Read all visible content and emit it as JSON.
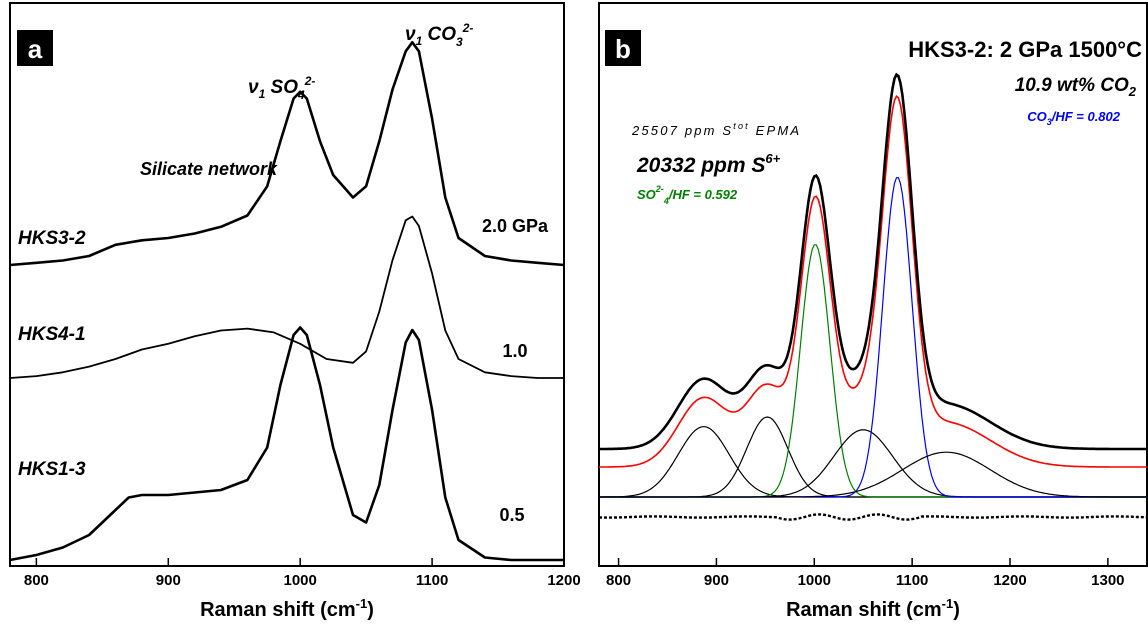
{
  "chart_data": [
    {
      "panel": "a",
      "type": "line",
      "xlabel": "Raman shift (cm",
      "xlabel_sup": "-1",
      "xlabel_close": ")",
      "xlim": [
        780,
        1200
      ],
      "xticks": [
        800,
        900,
        1000,
        1100,
        1200
      ],
      "grid": false,
      "peak_labels": {
        "sulfate": {
          "base": "ν",
          "sub": "1",
          "ion": " SO",
          "ion_sub": "4",
          "ion_sup": "2-"
        },
        "carbonate": {
          "base": "ν",
          "sub": "1",
          "ion": " CO",
          "ion_sub": "3",
          "ion_sup": "2-"
        }
      },
      "annotations": [
        "Silicate network"
      ],
      "series": [
        {
          "name": "HKS3-2",
          "pressure_label": "2.0 GPa",
          "color": "#000000",
          "x": [
            780,
            800,
            820,
            840,
            860,
            880,
            900,
            920,
            940,
            960,
            975,
            985,
            995,
            1000,
            1005,
            1015,
            1025,
            1040,
            1050,
            1060,
            1070,
            1080,
            1085,
            1090,
            1100,
            1110,
            1120,
            1140,
            1160,
            1180,
            1200
          ],
          "y": [
            0.0,
            0.01,
            0.02,
            0.04,
            0.09,
            0.11,
            0.12,
            0.14,
            0.17,
            0.22,
            0.35,
            0.55,
            0.74,
            0.77,
            0.74,
            0.55,
            0.4,
            0.3,
            0.35,
            0.55,
            0.78,
            0.95,
            0.99,
            0.95,
            0.65,
            0.3,
            0.12,
            0.04,
            0.02,
            0.01,
            0.0
          ]
        },
        {
          "name": "HKS4-1",
          "pressure_label": "1.0",
          "color": "#000000",
          "x": [
            780,
            800,
            820,
            840,
            860,
            880,
            900,
            920,
            940,
            960,
            980,
            1000,
            1020,
            1040,
            1050,
            1060,
            1070,
            1080,
            1085,
            1090,
            1100,
            1110,
            1120,
            1140,
            1160,
            1180,
            1200
          ],
          "y": [
            0.0,
            0.01,
            0.03,
            0.06,
            0.1,
            0.15,
            0.18,
            0.22,
            0.25,
            0.26,
            0.24,
            0.18,
            0.1,
            0.08,
            0.14,
            0.35,
            0.62,
            0.83,
            0.85,
            0.8,
            0.55,
            0.25,
            0.1,
            0.03,
            0.01,
            0.0,
            0.0
          ]
        },
        {
          "name": "HKS1-3",
          "pressure_label": "0.5",
          "color": "#000000",
          "x": [
            780,
            800,
            820,
            840,
            860,
            870,
            880,
            900,
            920,
            940,
            960,
            975,
            985,
            995,
            1000,
            1005,
            1015,
            1025,
            1040,
            1050,
            1060,
            1070,
            1080,
            1085,
            1090,
            1100,
            1110,
            1120,
            1140,
            1160,
            1180,
            1200
          ],
          "y": [
            0.0,
            0.02,
            0.05,
            0.1,
            0.2,
            0.25,
            0.26,
            0.26,
            0.27,
            0.28,
            0.32,
            0.45,
            0.7,
            0.9,
            0.93,
            0.9,
            0.7,
            0.45,
            0.18,
            0.15,
            0.3,
            0.6,
            0.87,
            0.92,
            0.88,
            0.6,
            0.25,
            0.08,
            0.01,
            0.0,
            0.0,
            0.0
          ]
        }
      ]
    },
    {
      "panel": "b",
      "type": "line",
      "title": "HKS3-2: 2 GPa 1500°C",
      "xlabel": "Raman shift (cm",
      "xlabel_sup": "-1",
      "xlabel_close": ")",
      "xlim": [
        780,
        1340
      ],
      "xticks": [
        800,
        900,
        1000,
        1100,
        1200,
        1300
      ],
      "grid": false,
      "annotations": {
        "co2": {
          "text": "10.9 wt% CO",
          "sub": "2"
        },
        "co3_ratio": {
          "pre": "CO",
          "sub": "3",
          "post": "/HF = 0.802",
          "color": "#0000ff"
        },
        "stot": {
          "pre": "25507 ppm S",
          "sup": "tot",
          "post": " EPMA"
        },
        "s6": {
          "pre": "20332 ppm S",
          "sup": "6+"
        },
        "so4_ratio": {
          "pre": "SO",
          "sup": "2-",
          "sub": "4",
          "post": "/HF = 0.592",
          "color": "#008000"
        }
      },
      "components": [
        {
          "name": "silicate-1",
          "color": "#000000",
          "center": 887,
          "amp": 0.22,
          "width": 26
        },
        {
          "name": "silicate-2",
          "color": "#000000",
          "center": 952,
          "amp": 0.25,
          "width": 21
        },
        {
          "name": "sulfate",
          "color": "#008000",
          "center": 1001,
          "amp": 0.79,
          "width": 15
        },
        {
          "name": "silicate-3",
          "color": "#000000",
          "center": 1050,
          "amp": 0.21,
          "width": 30
        },
        {
          "name": "carbonate",
          "color": "#0000ff",
          "center": 1085,
          "amp": 1.0,
          "width": 15
        },
        {
          "name": "silicate-4",
          "color": "#000000",
          "center": 1135,
          "amp": 0.14,
          "width": 45
        }
      ],
      "measured": {
        "color": "#000000"
      },
      "fit": {
        "color": "#ff0000"
      },
      "residual": {
        "color": "#000000"
      }
    }
  ]
}
